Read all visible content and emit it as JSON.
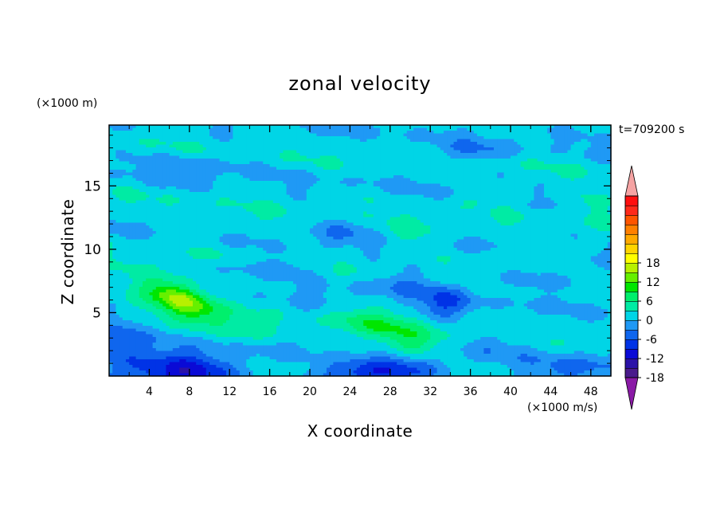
{
  "chart_data": {
    "type": "heatmap",
    "title": "zonal velocity",
    "xlabel": "X coordinate",
    "ylabel": "Z coordinate",
    "x_unit": "(×1000 m/s)",
    "y_unit": "(×1000 m)",
    "time_label": "t=709200 s",
    "xlim": [
      0,
      50
    ],
    "ylim": [
      0,
      19.8
    ],
    "x_ticks": [
      "4",
      "8",
      "12",
      "16",
      "20",
      "24",
      "28",
      "32",
      "36",
      "40",
      "44",
      "48"
    ],
    "y_ticks": [
      "5",
      "10",
      "15"
    ],
    "colorbar": {
      "range": [
        -21,
        21
      ],
      "step": 3,
      "tick_labels": [
        "18",
        "12",
        "6",
        "0",
        "-6",
        "-12",
        "-18"
      ],
      "tick_values": [
        18,
        12,
        6,
        0,
        -6,
        -12,
        -18
      ],
      "extend": "both",
      "colors": [
        "#4a1a8c",
        "#2b12a8",
        "#0a0ad6",
        "#0033e6",
        "#0f66ee",
        "#1f99f5",
        "#00d5e6",
        "#00eba4",
        "#00ef6c",
        "#00e600",
        "#66f000",
        "#b8f000",
        "#ffff00",
        "#ffd500",
        "#ffaa00",
        "#ff8000",
        "#ff5500",
        "#ff2a1a",
        "#ff0f0f"
      ],
      "lower_extend_color": "#8a1aa6",
      "upper_extend_color": "#f5a3a3"
    },
    "features": [
      {
        "x": 7.5,
        "z": 6.0,
        "sx": 3.2,
        "sz": 1.1,
        "amp": 11,
        "tilt": -0.28
      },
      {
        "x": 6.5,
        "z": 6.3,
        "sx": 1.6,
        "sz": 0.6,
        "amp": 4,
        "tilt": -0.25
      },
      {
        "x": 26.5,
        "z": 4.0,
        "sx": 3.6,
        "sz": 0.9,
        "amp": 7.5,
        "tilt": -0.2
      },
      {
        "x": 30.0,
        "z": 2.4,
        "sx": 2.0,
        "sz": 0.7,
        "amp": 4,
        "tilt": 0.0
      },
      {
        "x": 14.5,
        "z": 3.6,
        "sx": 1.8,
        "sz": 0.8,
        "amp": 4,
        "tilt": 0.1
      },
      {
        "x": 7.5,
        "z": 0.3,
        "sx": 4.0,
        "sz": 1.2,
        "amp": -13,
        "tilt": 0.0
      },
      {
        "x": 26.5,
        "z": 0.2,
        "sx": 3.8,
        "sz": 0.8,
        "amp": -12,
        "tilt": 0.0
      },
      {
        "x": 1.0,
        "z": 1.8,
        "sx": 1.6,
        "sz": 1.8,
        "amp": -6,
        "tilt": 0.0
      },
      {
        "x": 46.5,
        "z": 0.5,
        "sx": 3.0,
        "sz": 0.9,
        "amp": -5,
        "tilt": 0.0
      },
      {
        "x": 33.5,
        "z": 5.6,
        "sx": 1.9,
        "sz": 1.0,
        "amp": -7,
        "tilt": 0.0
      },
      {
        "x": 29.0,
        "z": 7.2,
        "sx": 2.5,
        "sz": 0.8,
        "amp": -4,
        "tilt": 0.0
      },
      {
        "x": 20.0,
        "z": 5.0,
        "sx": 3.0,
        "sz": 0.9,
        "amp": -3,
        "tilt": 0.0
      },
      {
        "x": 38.0,
        "z": 3.0,
        "sx": 3.0,
        "sz": 1.2,
        "amp": -3,
        "tilt": 0.0
      },
      {
        "x": 16.0,
        "z": 8.6,
        "sx": 4.0,
        "sz": 0.5,
        "amp": -3.5,
        "tilt": 0.0
      },
      {
        "x": 44.0,
        "z": 7.6,
        "sx": 4.0,
        "sz": 0.5,
        "amp": -3.5,
        "tilt": 0.0
      },
      {
        "x": 36.0,
        "z": 4.2,
        "sx": 2.5,
        "sz": 0.9,
        "amp": 3,
        "tilt": -0.2
      },
      {
        "x": 30.0,
        "z": 11.1,
        "sx": 2.0,
        "sz": 0.6,
        "amp": 3,
        "tilt": 0.0
      },
      {
        "x": 39.0,
        "z": 14.0,
        "sx": 3.0,
        "sz": 0.4,
        "amp": 3,
        "tilt": 0.0
      },
      {
        "x": 36.0,
        "z": 17.7,
        "sx": 3.0,
        "sz": 0.6,
        "amp": -4,
        "tilt": 0.0
      },
      {
        "x": 23.0,
        "z": 11.3,
        "sx": 2.0,
        "sz": 0.8,
        "amp": -3,
        "tilt": 0.0
      },
      {
        "x": 8.0,
        "z": 16.5,
        "sx": 3.5,
        "sz": 0.8,
        "amp": -3,
        "tilt": 0.0
      },
      {
        "x": 12.0,
        "z": 12.0,
        "sx": 3.0,
        "sz": 0.5,
        "amp": 2.5,
        "tilt": 0.0
      },
      {
        "x": 48.0,
        "z": 13.5,
        "sx": 1.5,
        "sz": 1.0,
        "amp": 3,
        "tilt": 0.0
      },
      {
        "x": 41.0,
        "z": 9.6,
        "sx": 3.0,
        "sz": 0.4,
        "amp": 3,
        "tilt": 0.0
      }
    ]
  }
}
